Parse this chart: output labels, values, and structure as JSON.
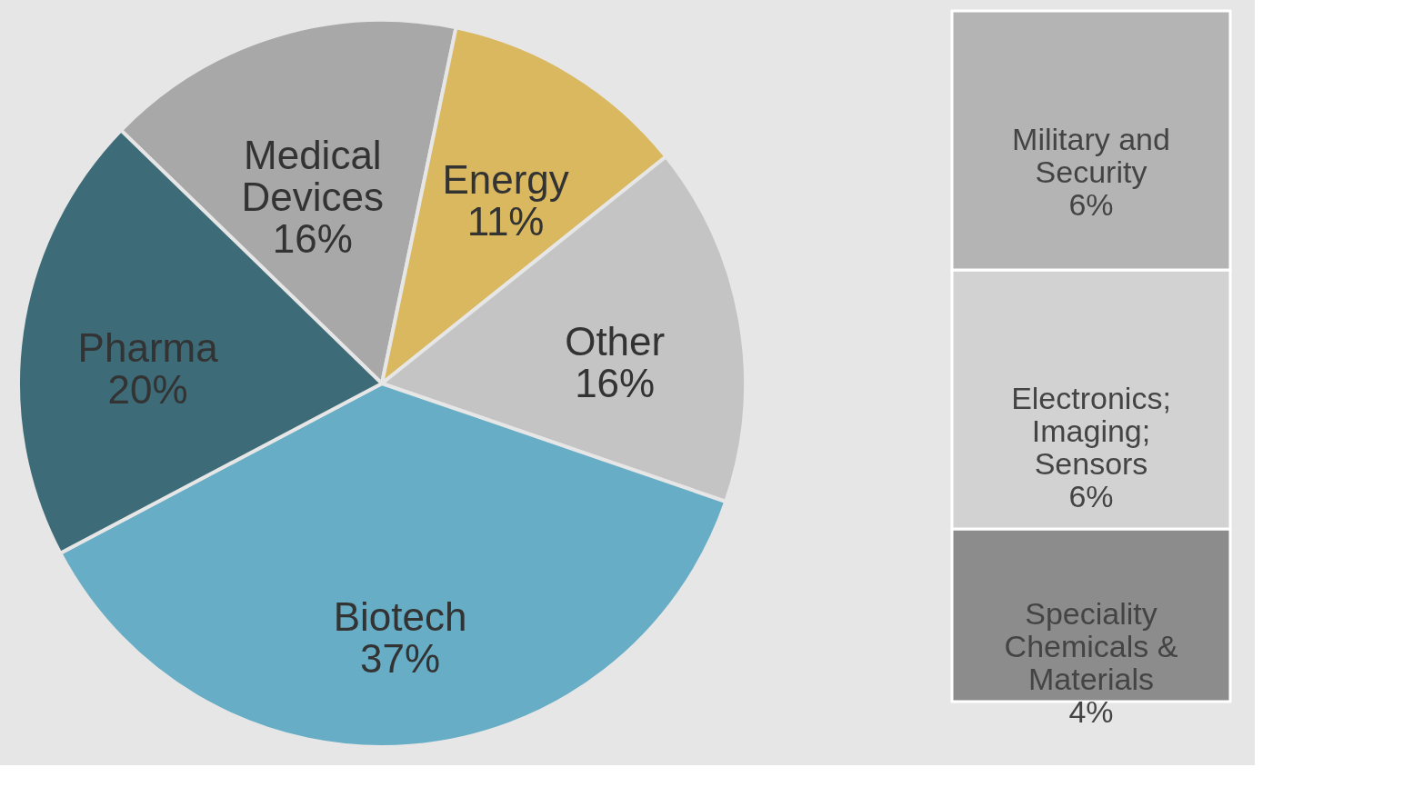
{
  "chart_data": [
    {
      "type": "pie",
      "categories": [
        "Medical Devices",
        "Energy",
        "Other",
        "Biotech",
        "Pharma"
      ],
      "values": [
        16,
        11,
        16,
        37,
        20
      ],
      "colors": [
        "#a8a8a8",
        "#d9b860",
        "#c4c4c4",
        "#67adc5",
        "#3d6b78"
      ],
      "value_labels": [
        "16%",
        "11%",
        "16%",
        "37%",
        "20%"
      ],
      "legend": false
    },
    {
      "type": "bar",
      "stacked": true,
      "categories": [
        null
      ],
      "tick_labels": false,
      "legend": false,
      "series": [
        {
          "name": "Speciality Chemicals & Materials",
          "color": "#8c8c8c",
          "values": [
            4
          ],
          "value_labels": [
            "4%"
          ]
        },
        {
          "name": "Electronics; Imaging; Sensors",
          "color": "#d2d2d2",
          "values": [
            6
          ],
          "value_labels": [
            "6%"
          ]
        },
        {
          "name": "Military and Security",
          "color": "#b4b4b4",
          "values": [
            6
          ],
          "value_labels": [
            "6%"
          ]
        }
      ]
    }
  ]
}
